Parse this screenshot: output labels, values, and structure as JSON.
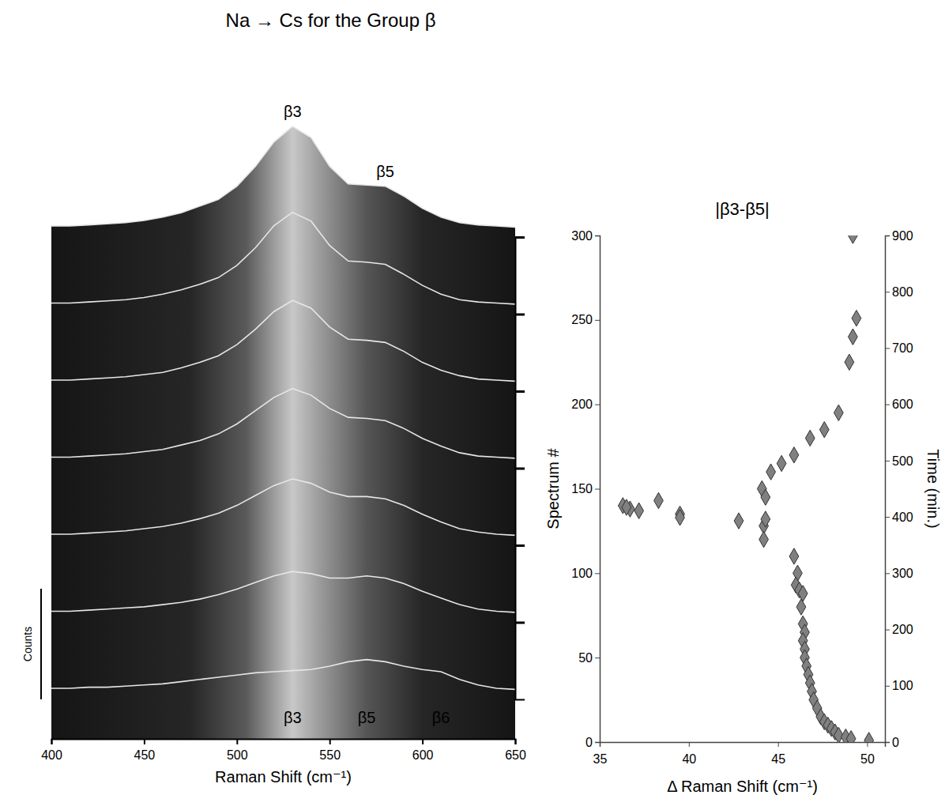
{
  "chart_data": [
    {
      "type": "waterfall",
      "title": "Na → Cs for the Group β",
      "x_label": "Raman Shift (cm⁻¹)",
      "counts_label": "Counts",
      "xlim": [
        400,
        650
      ],
      "xticks": [
        400,
        450,
        500,
        550,
        600,
        650
      ],
      "ylim": [
        0,
        300
      ],
      "yticks": [
        50,
        100,
        150,
        200,
        250,
        300
      ],
      "counts_lim": [
        0,
        100
      ],
      "tick_labels": "x",
      "x": [
        400,
        410,
        420,
        430,
        440,
        450,
        460,
        470,
        480,
        490,
        500,
        510,
        520,
        530,
        540,
        550,
        560,
        570,
        580,
        590,
        600,
        610,
        620,
        630,
        640,
        650
      ],
      "series": [
        {
          "spectrum": 0,
          "values": [
            10,
            10,
            11,
            11,
            12,
            13,
            14,
            16,
            18,
            20,
            22,
            24,
            25,
            26,
            27,
            30,
            34,
            36,
            34,
            30,
            27,
            25,
            18,
            13,
            10,
            9
          ]
        },
        {
          "spectrum": 50,
          "values": [
            10,
            10,
            11,
            12,
            13,
            14,
            16,
            18,
            21,
            25,
            30,
            36,
            42,
            46,
            44,
            40,
            40,
            42,
            40,
            35,
            28,
            22,
            16,
            12,
            10,
            9
          ]
        },
        {
          "spectrum": 100,
          "values": [
            10,
            10,
            11,
            12,
            13,
            15,
            17,
            20,
            24,
            29,
            36,
            45,
            54,
            60,
            56,
            48,
            44,
            44,
            42,
            36,
            28,
            21,
            15,
            12,
            10,
            9
          ]
        },
        {
          "spectrum": 150,
          "values": [
            10,
            10,
            11,
            12,
            13,
            15,
            17,
            21,
            25,
            31,
            40,
            52,
            64,
            72,
            66,
            54,
            46,
            45,
            43,
            36,
            27,
            20,
            14,
            11,
            10,
            9
          ]
        },
        {
          "spectrum": 200,
          "values": [
            10,
            10,
            11,
            12,
            13,
            15,
            17,
            21,
            26,
            32,
            42,
            56,
            72,
            82,
            75,
            58,
            47,
            46,
            44,
            36,
            26,
            19,
            14,
            11,
            10,
            9
          ]
        },
        {
          "spectrum": 250,
          "values": [
            10,
            10,
            11,
            12,
            13,
            15,
            18,
            22,
            27,
            33,
            44,
            60,
            80,
            92,
            84,
            62,
            48,
            47,
            45,
            36,
            26,
            18,
            13,
            11,
            10,
            9
          ]
        },
        {
          "spectrum": 300,
          "values": [
            10,
            10,
            11,
            12,
            13,
            15,
            18,
            22,
            28,
            34,
            46,
            64,
            86,
            100,
            90,
            64,
            48,
            47,
            46,
            37,
            26,
            18,
            13,
            11,
            10,
            9
          ]
        }
      ],
      "annotations": [
        {
          "text": "β3",
          "x": 530,
          "spectrum": 300
        },
        {
          "text": "β5",
          "x": 580,
          "spectrum": 300
        },
        {
          "text": "β3",
          "x": 530,
          "spectrum": 0
        },
        {
          "text": "β5",
          "x": 570,
          "spectrum": 0
        },
        {
          "text": "β6",
          "x": 610,
          "spectrum": 0
        }
      ]
    },
    {
      "type": "scatter",
      "title": "|β3-β5|",
      "x_label": "Δ Raman Shift (cm⁻¹)",
      "y_label": "Spectrum #",
      "y2_label": "Time (min.)",
      "xlim": [
        35,
        51
      ],
      "xticks": [
        35,
        40,
        45,
        50
      ],
      "ylim": [
        0,
        300
      ],
      "yticks": [
        0,
        50,
        100,
        150,
        200,
        250,
        300
      ],
      "y2lim": [
        0,
        900
      ],
      "y2ticks": [
        0,
        100,
        200,
        300,
        400,
        500,
        600,
        700,
        800,
        900
      ],
      "marker": "diamond",
      "color": "#808080",
      "x": [
        49.2,
        49.4,
        49.2,
        49.0,
        48.4,
        47.6,
        46.8,
        45.9,
        45.2,
        44.6,
        44.1,
        44.3,
        42.8,
        44.2,
        44.3,
        44.2,
        39.5,
        39.5,
        38.3,
        37.2,
        36.7,
        36.3,
        36.5,
        45.9,
        46.1,
        46.0,
        46.2,
        46.4,
        46.3,
        46.4,
        46.5,
        46.4,
        46.5,
        46.5,
        46.6,
        46.7,
        46.8,
        46.9,
        47.0,
        47.2,
        47.4,
        47.6,
        47.8,
        48.0,
        48.2,
        48.4,
        48.8,
        49.1,
        50.1
      ],
      "values": [
        300,
        251,
        240,
        225,
        195,
        185,
        180,
        170,
        165,
        160,
        150,
        145,
        131,
        128,
        132,
        120,
        135,
        133,
        143,
        137,
        138,
        140,
        139,
        110,
        100,
        93,
        90,
        88,
        80,
        70,
        65,
        60,
        55,
        50,
        45,
        40,
        35,
        30,
        25,
        20,
        15,
        12,
        10,
        8,
        6,
        4,
        3,
        2,
        1
      ]
    }
  ]
}
